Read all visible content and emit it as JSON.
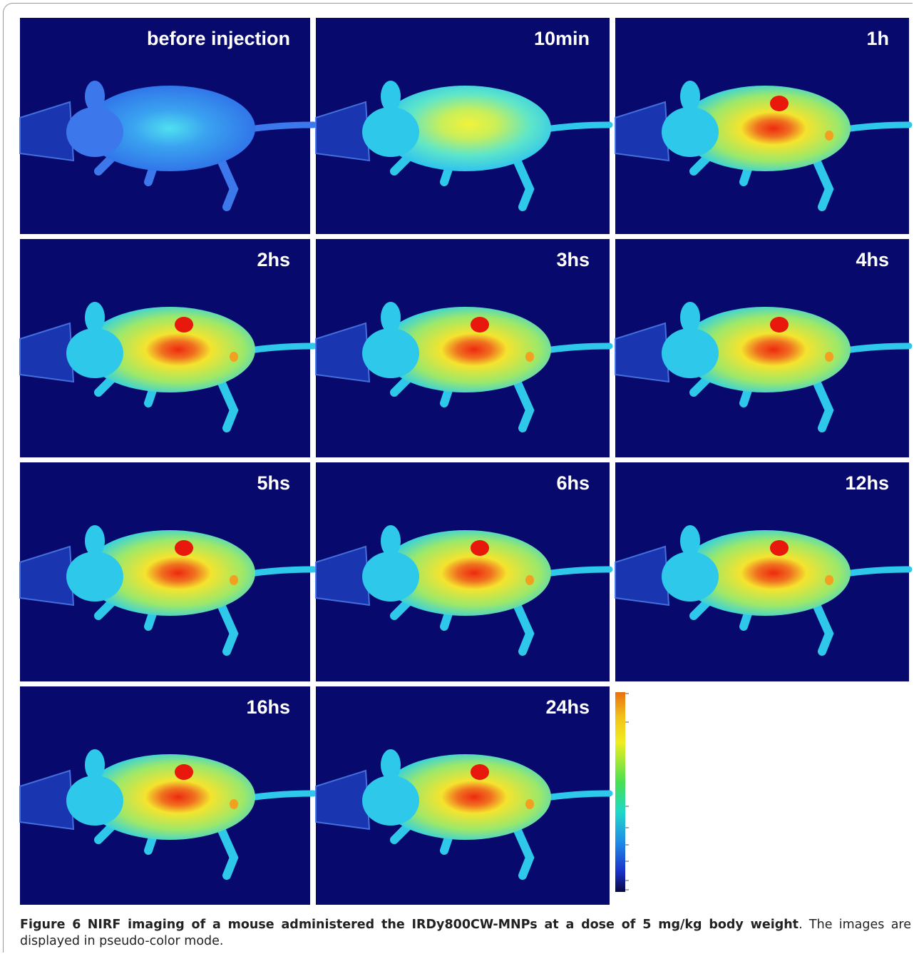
{
  "figure": {
    "panels": [
      "before injection",
      "10min",
      "1h",
      "2hs",
      "3hs",
      "4hs",
      "5hs",
      "6hs",
      "12hs",
      "16hs",
      "24hs"
    ],
    "caption": {
      "label": "Figure 6",
      "title": "NIRF imaging of a mouse administered the IRDy800CW-MNPs at a dose of 5 mg/kg body weight",
      "text": ". The images are displayed in pseudo-color mode."
    }
  }
}
